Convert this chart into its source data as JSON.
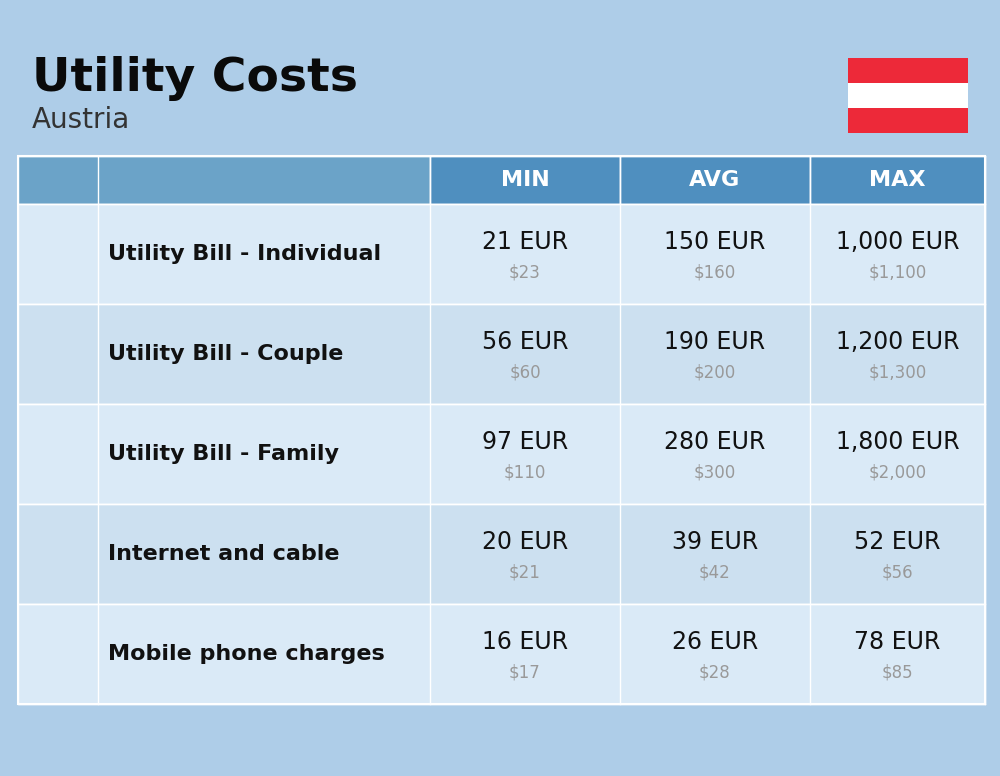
{
  "title": "Utility Costs",
  "subtitle": "Austria",
  "background_color": "#aecde8",
  "header_bg_color": "#4f8fbf",
  "header_text_color": "#ffffff",
  "col_headers": [
    "MIN",
    "AVG",
    "MAX"
  ],
  "rows": [
    {
      "label": "Utility Bill - Individual",
      "min_eur": "21 EUR",
      "min_usd": "$23",
      "avg_eur": "150 EUR",
      "avg_usd": "$160",
      "max_eur": "1,000 EUR",
      "max_usd": "$1,100"
    },
    {
      "label": "Utility Bill - Couple",
      "min_eur": "56 EUR",
      "min_usd": "$60",
      "avg_eur": "190 EUR",
      "avg_usd": "$200",
      "max_eur": "1,200 EUR",
      "max_usd": "$1,300"
    },
    {
      "label": "Utility Bill - Family",
      "min_eur": "97 EUR",
      "min_usd": "$110",
      "avg_eur": "280 EUR",
      "avg_usd": "$300",
      "max_eur": "1,800 EUR",
      "max_usd": "$2,000"
    },
    {
      "label": "Internet and cable",
      "min_eur": "20 EUR",
      "min_usd": "$21",
      "avg_eur": "39 EUR",
      "avg_usd": "$42",
      "max_eur": "52 EUR",
      "max_usd": "$56"
    },
    {
      "label": "Mobile phone charges",
      "min_eur": "16 EUR",
      "min_usd": "$17",
      "avg_eur": "26 EUR",
      "avg_usd": "$28",
      "max_eur": "78 EUR",
      "max_usd": "$85"
    }
  ],
  "flag_red": "#ED2939",
  "flag_white": "#ffffff",
  "eur_fontsize": 17,
  "usd_fontsize": 12,
  "label_fontsize": 16,
  "header_fontsize": 16,
  "title_fontsize": 34,
  "subtitle_fontsize": 20,
  "usd_color": "#999999",
  "label_color": "#111111",
  "row_color_odd": "#daeaf7",
  "row_color_even": "#cce0f0",
  "header_light_color": "#6ba3c8"
}
